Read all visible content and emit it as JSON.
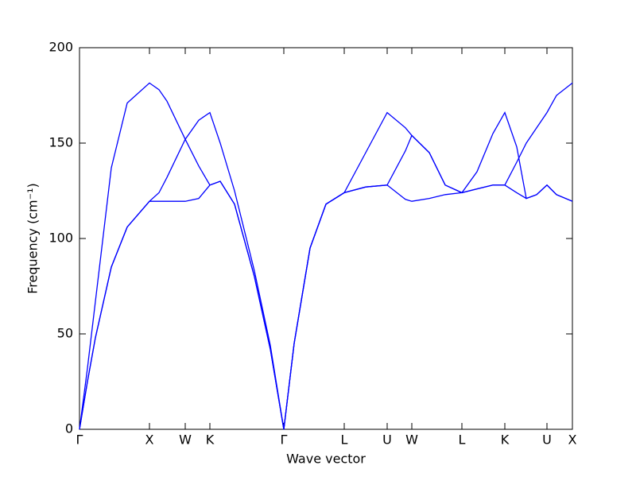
{
  "chart_data": {
    "type": "line",
    "ylabel": "Frequency (cm⁻¹)",
    "xlabel": "Wave vector",
    "x": [
      0,
      10,
      20,
      40,
      60,
      88,
      100,
      110,
      133,
      150,
      164,
      177,
      195,
      220,
      240,
      257,
      270,
      290,
      310,
      333,
      360,
      387,
      410,
      418,
      440,
      460,
      481,
      500,
      520,
      535,
      550,
      562,
      575,
      588,
      600,
      620
    ],
    "xlim": [
      0,
      620
    ],
    "xticks": [
      {
        "value": 0,
        "label": "Γ"
      },
      {
        "value": 88,
        "label": "X"
      },
      {
        "value": 133,
        "label": "W"
      },
      {
        "value": 164,
        "label": "K"
      },
      {
        "value": 257,
        "label": "Γ"
      },
      {
        "value": 333,
        "label": "L"
      },
      {
        "value": 387,
        "label": "U"
      },
      {
        "value": 418,
        "label": "W"
      },
      {
        "value": 481,
        "label": "L"
      },
      {
        "value": 535,
        "label": "K"
      },
      {
        "value": 588,
        "label": "U"
      },
      {
        "value": 620,
        "label": "X"
      }
    ],
    "ylim": [
      0,
      200
    ],
    "yticks": [
      0,
      50,
      100,
      150,
      200
    ],
    "series": [
      {
        "color": "#0000ff",
        "values": [
          0,
          32,
          67,
          137,
          171,
          181.5,
          178,
          172,
          152,
          138,
          128,
          130,
          118,
          80,
          42,
          0,
          45,
          95,
          118,
          124,
          145,
          166,
          158,
          154,
          145,
          128,
          124,
          135,
          155,
          166,
          148,
          121,
          123,
          128,
          123,
          119.5
        ]
      },
      {
        "color": "#0000ff",
        "values": [
          0,
          25,
          48,
          85,
          106,
          119.5,
          124,
          132,
          152,
          162,
          166,
          150,
          125,
          83,
          44,
          0,
          45,
          95,
          118,
          124,
          127,
          128,
          146,
          154,
          145,
          128,
          124,
          126,
          128,
          128,
          140,
          150,
          158,
          166,
          175,
          181.5
        ]
      },
      {
        "color": "#0000ff",
        "values": [
          0,
          25,
          48,
          85,
          106,
          119.5,
          119.5,
          119.5,
          119.5,
          121,
          128,
          130,
          118,
          80,
          42,
          0,
          45,
          95,
          118,
          124,
          127,
          128,
          120.5,
          119.5,
          121,
          123,
          124,
          126,
          128,
          128,
          124,
          121,
          123,
          128,
          123,
          119.5
        ]
      }
    ]
  }
}
